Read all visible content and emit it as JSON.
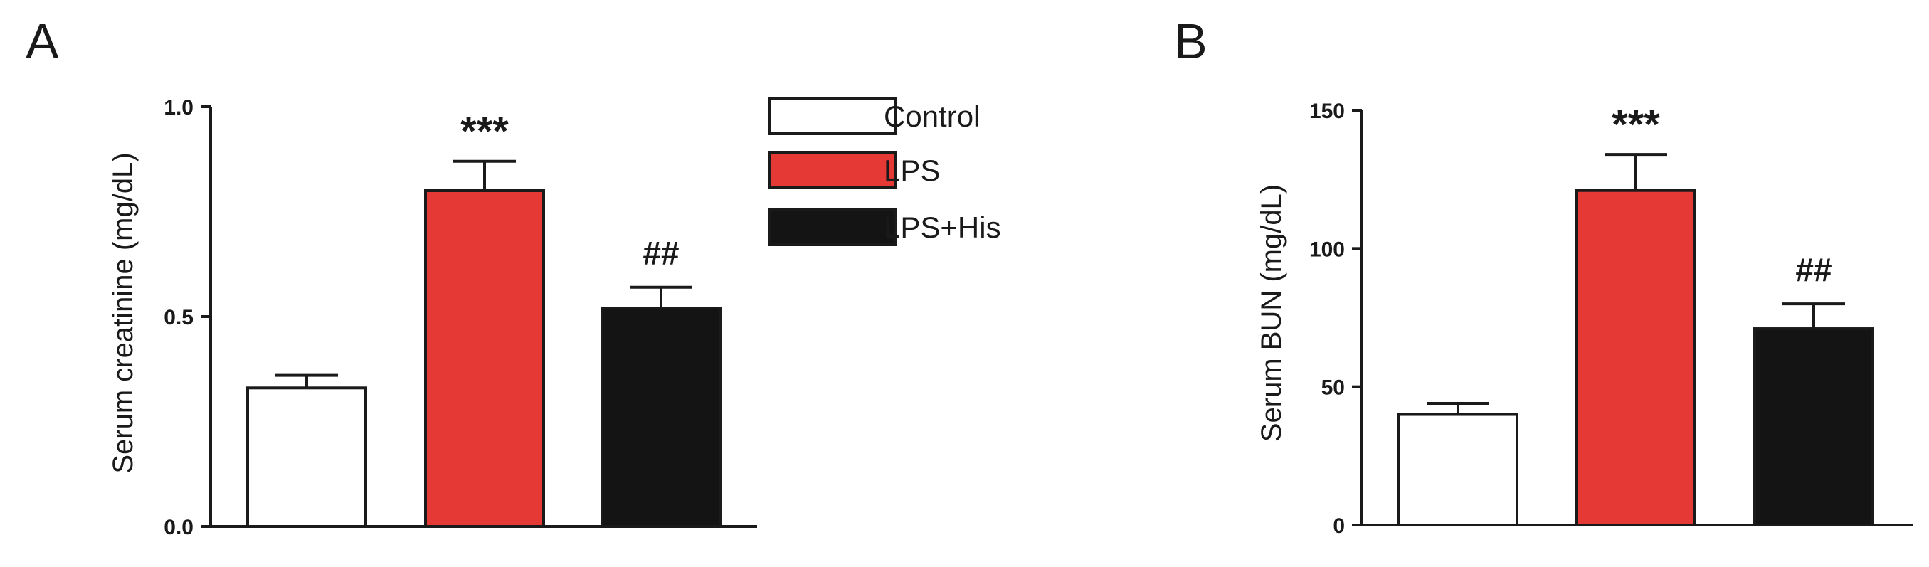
{
  "legend": [
    {
      "label": "Control",
      "color": "#ffffff"
    },
    {
      "label": "LPS",
      "color": "#e53935"
    },
    {
      "label": "LPS+His",
      "color": "#141414"
    }
  ],
  "chart_data": [
    {
      "type": "bar",
      "panel": "A",
      "title": "",
      "xlabel": "",
      "ylabel": "Serum creatinine (mg/dL)",
      "ylim": [
        0,
        1.0
      ],
      "yticks": [
        0.0,
        0.5,
        1.0
      ],
      "ytick_labels": [
        "0.0",
        "0.5",
        "1.0"
      ],
      "categories": [
        "Control",
        "LPS",
        "LPS+His"
      ],
      "values": [
        0.33,
        0.8,
        0.52
      ],
      "errors": [
        0.03,
        0.07,
        0.05
      ],
      "annotations": [
        "",
        "***",
        "##"
      ],
      "colors": [
        "#ffffff",
        "#e53935",
        "#141414"
      ],
      "grid": false
    },
    {
      "type": "bar",
      "panel": "B",
      "title": "",
      "xlabel": "",
      "ylabel": "Serum BUN (mg/dL)",
      "ylim": [
        0,
        150
      ],
      "yticks": [
        0,
        50,
        100,
        150
      ],
      "ytick_labels": [
        "0",
        "50",
        "100",
        "150"
      ],
      "categories": [
        "Control",
        "LPS",
        "LPS+His"
      ],
      "values": [
        40,
        121,
        71
      ],
      "errors": [
        4,
        13,
        9
      ],
      "annotations": [
        "",
        "***",
        "##"
      ],
      "colors": [
        "#ffffff",
        "#e53935",
        "#141414"
      ],
      "grid": false
    }
  ]
}
